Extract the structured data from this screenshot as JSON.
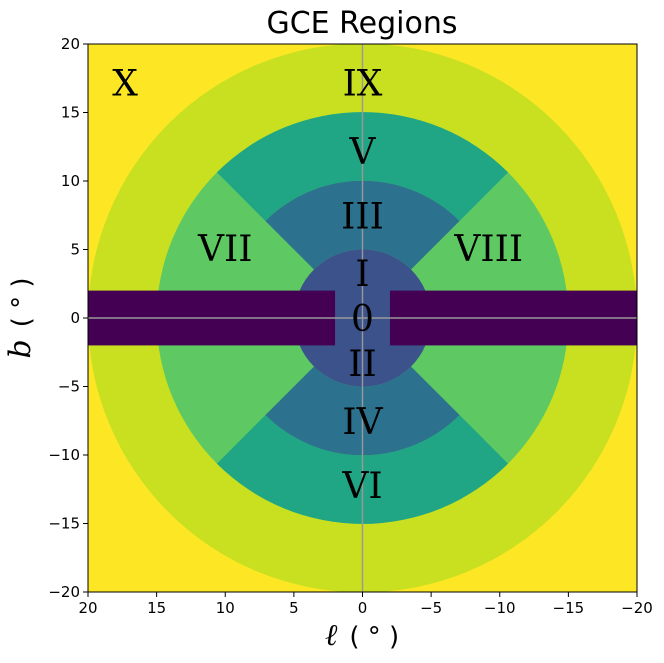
{
  "chart_data": {
    "type": "heatmap",
    "title": "GCE Regions",
    "xlabel_symbol": "ℓ",
    "xlabel_unit": "( ° )",
    "ylabel_symbol": "b",
    "ylabel_unit": "( ° )",
    "xlim": [
      20,
      -20
    ],
    "ylim": [
      -20,
      20
    ],
    "xticks": [
      20,
      15,
      10,
      5,
      0,
      -5,
      -10,
      -15,
      -20
    ],
    "yticks": [
      20,
      15,
      10,
      5,
      0,
      -5,
      -10,
      -15,
      -20
    ],
    "xtick_labels": [
      "20",
      "15",
      "10",
      "5",
      "0",
      "−5",
      "−10",
      "−15",
      "−20"
    ],
    "ytick_labels": [
      "20",
      "15",
      "10",
      "5",
      "0",
      "−5",
      "−10",
      "−15",
      "−20"
    ],
    "colors": {
      "r0": "#440154",
      "r1_2": "#3b528b",
      "r3_4": "#2c728e",
      "r5_6": "#21a685",
      "r7_8": "#5ec962",
      "r9": "#c8e020",
      "r10": "#fde725",
      "axisline": "#999999"
    },
    "rings": {
      "inner": [
        0,
        5
      ],
      "mid": [
        5,
        10
      ],
      "outer": [
        10,
        15
      ],
      "band": [
        15,
        20
      ]
    },
    "disk_band_b": 2,
    "center_box_l": 2,
    "regions": [
      {
        "label": "0",
        "l": 0,
        "b": 0
      },
      {
        "label": "I",
        "l": 0,
        "b": 3.3
      },
      {
        "label": "II",
        "l": 0,
        "b": -3.3
      },
      {
        "label": "III",
        "l": 0,
        "b": 7.5
      },
      {
        "label": "IV",
        "l": 0,
        "b": -7.5
      },
      {
        "label": "V",
        "l": 0,
        "b": 12.2
      },
      {
        "label": "VI",
        "l": 0,
        "b": -12.2
      },
      {
        "label": "VII",
        "l": 10,
        "b": 5.1
      },
      {
        "label": "VIII",
        "l": -9.2,
        "b": 5.1
      },
      {
        "label": "IX",
        "l": 0,
        "b": 17.2
      },
      {
        "label": "X",
        "l": 17.3,
        "b": 17.2
      }
    ]
  }
}
